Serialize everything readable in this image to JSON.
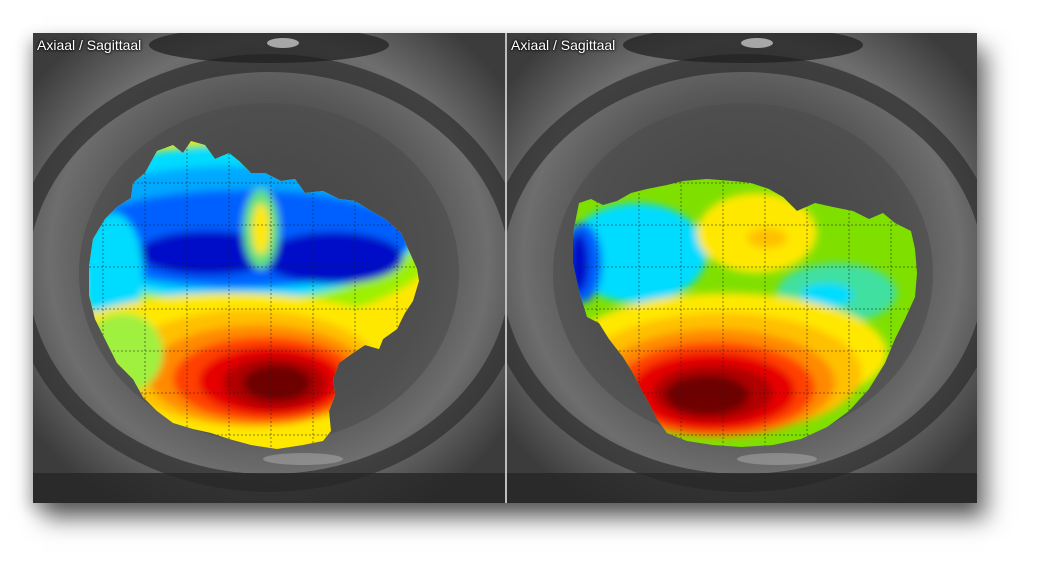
{
  "panels": {
    "left": {
      "title": "Axiaal / Sagittaal"
    },
    "right": {
      "title": "Axiaal / Sagittaal"
    }
  },
  "colors": {
    "dark_red": "#6e0000",
    "red": "#e60000",
    "orange": "#ff8a00",
    "yellow": "#ffe800",
    "green": "#7fe000",
    "cyan": "#00dcff",
    "blue": "#0060ff",
    "dark_blue": "#0010c8",
    "grid": "#222222"
  }
}
